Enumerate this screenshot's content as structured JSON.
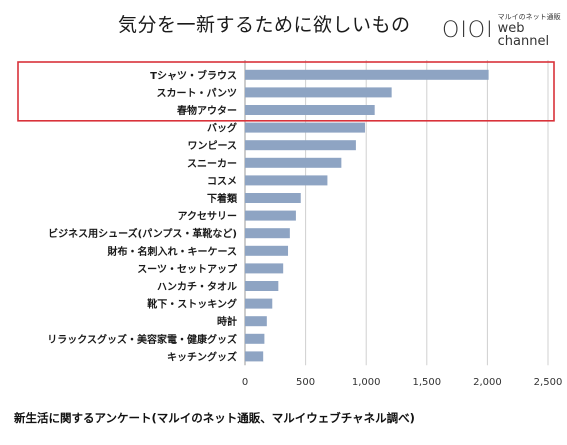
{
  "header": {
    "title": "気分を一新するために欲しいもの",
    "brand_logo": "OIOI",
    "brand_small": "マルイのネット通販",
    "brand_big": "web channel"
  },
  "footer": {
    "text": "新生活に関するアンケート(マルイのネット通販、マルイウェブチャネル調べ)"
  },
  "chart_data": {
    "type": "bar",
    "orientation": "horizontal",
    "categories": [
      "Tシャツ・ブラウス",
      "スカート・パンツ",
      "春物アウター",
      "バッグ",
      "ワンピース",
      "スニーカー",
      "コスメ",
      "下着類",
      "アクセサリー",
      "ビジネス用シューズ(パンプス・革靴など)",
      "財布・名刺入れ・キーケース",
      "スーツ・セットアップ",
      "ハンカチ・タオル",
      "靴下・ストッキング",
      "時計",
      "リラックスグッズ・美容家電・健康グッズ",
      "キッチングッズ"
    ],
    "values": [
      2010,
      1210,
      1070,
      990,
      915,
      795,
      680,
      460,
      420,
      370,
      355,
      315,
      275,
      225,
      180,
      160,
      150
    ],
    "xlim": [
      0,
      2500
    ],
    "xticks": [
      "0",
      "500",
      "1,000",
      "1,500",
      "2,000",
      "2,500"
    ],
    "highlight_count": 3,
    "grid": "vertical",
    "colors": {
      "bar": "#8ea4c3",
      "highlight_border": "#d9323a",
      "grid": "#d0d0d0"
    }
  }
}
